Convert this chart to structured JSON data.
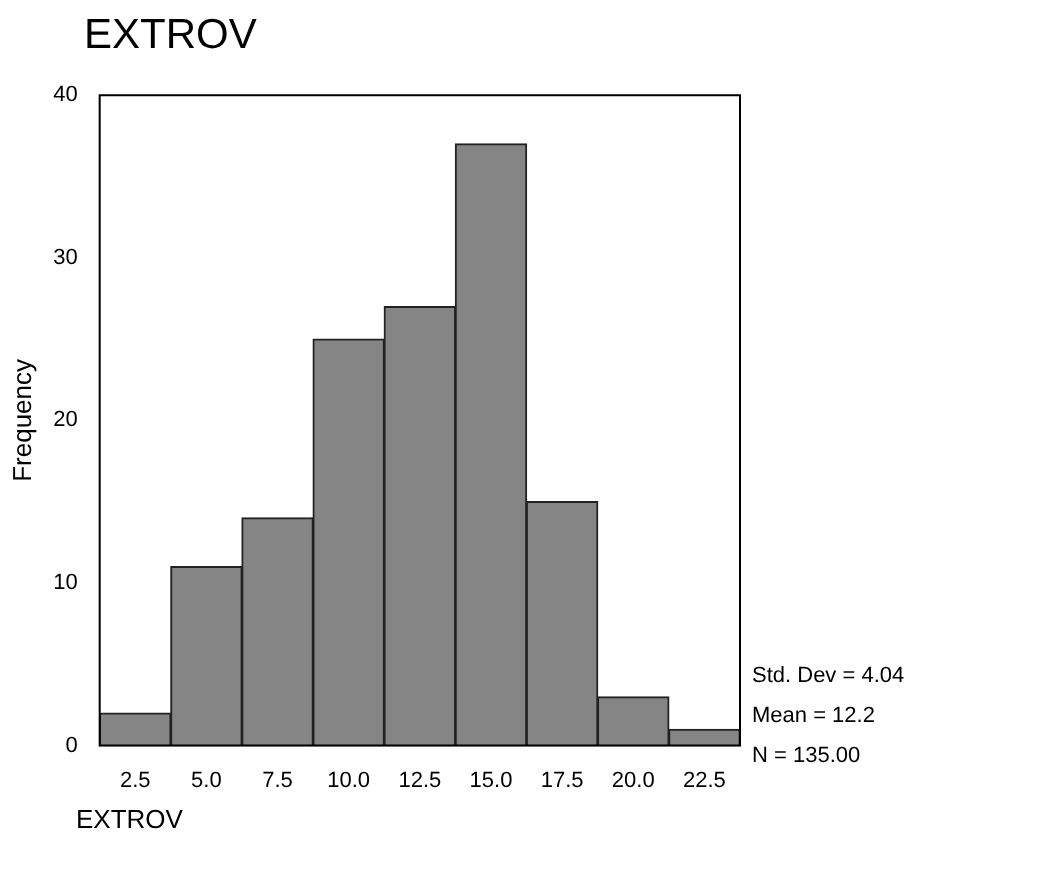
{
  "chart_data": {
    "type": "histogram",
    "title": "EXTROV",
    "xlabel": "EXTROV",
    "ylabel": "Frequency",
    "bins": [
      1.25,
      3.75,
      6.25,
      8.75,
      11.25,
      13.75,
      16.25,
      18.75,
      21.25,
      23.75
    ],
    "values": [
      2,
      11,
      14,
      25,
      27,
      37,
      15,
      3,
      1
    ],
    "color": "#858585",
    "xlim": [
      1.25,
      23.75
    ],
    "xticks": [
      2.5,
      {
        "value": 5,
        "label": "5.0"
      },
      {
        "value": 7.5,
        "label": "7.5"
      },
      {
        "value": 10,
        "label": "10.0"
      },
      {
        "value": 12.5,
        "label": "12.5"
      },
      {
        "value": 15,
        "label": "15.0"
      },
      {
        "value": 17.5,
        "label": "17.5"
      },
      {
        "value": 20,
        "label": "20.0"
      },
      {
        "value": 22.5,
        "label": "22.5"
      }
    ],
    "ylim": [
      0,
      40
    ],
    "yticks": [
      0,
      10,
      20,
      30,
      40
    ],
    "annotations": [
      "Std. Dev = 4.04",
      "Mean = 12.2",
      "N = 135.00"
    ]
  }
}
